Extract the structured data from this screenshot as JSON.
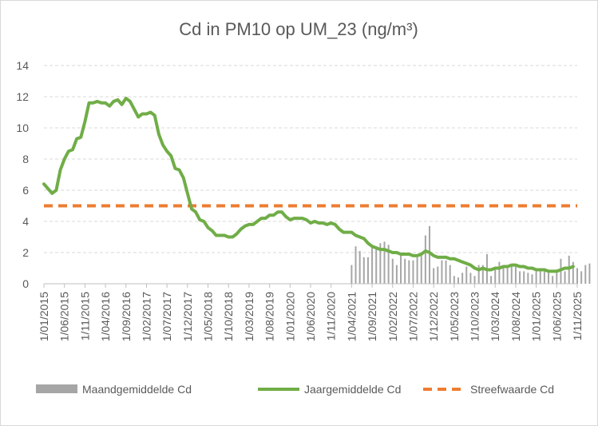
{
  "chart_data": {
    "type": "line",
    "title": "Cd in PM10 op UM_23 (ng/m³)",
    "xlabel": "",
    "ylabel": "",
    "ylim": [
      0,
      14
    ],
    "yticks": [
      "0",
      "2",
      "4",
      "6",
      "8",
      "10",
      "12",
      "14"
    ],
    "x_start": "2015-01",
    "x_end": "2025-11",
    "xticks": [
      "1/01/2015",
      "1/06/2015",
      "1/11/2015",
      "1/04/2016",
      "1/09/2016",
      "1/02/2017",
      "1/07/2017",
      "1/12/2017",
      "1/05/2018",
      "1/10/2018",
      "1/03/2019",
      "1/08/2019",
      "1/01/2020",
      "1/06/2020",
      "1/11/2020",
      "1/04/2021",
      "1/09/2021",
      "1/02/2022",
      "1/07/2022",
      "1/12/2022",
      "1/05/2023",
      "1/10/2023",
      "1/03/2024",
      "1/08/2024",
      "1/01/2025",
      "1/06/2025",
      "1/11/2025"
    ],
    "grid": true,
    "legend_position": "bottom",
    "series": [
      {
        "name": "Maandgemiddelde Cd",
        "kind": "bar",
        "color": "#a6a6a6",
        "start_index": 75,
        "values": [
          1.2,
          2.4,
          2.1,
          1.7,
          1.7,
          2.3,
          2.3,
          2.6,
          2.7,
          2.5,
          1.6,
          1.2,
          2.0,
          1.6,
          1.5,
          1.5,
          1.7,
          1.9,
          3.1,
          3.7,
          1.0,
          1.1,
          1.5,
          1.5,
          1.2,
          0.5,
          0.4,
          0.7,
          1.1,
          0.7,
          0.5,
          1.2,
          1.2,
          1.9,
          0.5,
          0.9,
          1.4,
          1.1,
          1.0,
          1.2,
          1.1,
          0.8,
          0.8,
          0.7,
          0.6,
          0.8,
          1.0,
          1.0,
          0.7,
          0.5,
          0.9,
          1.6,
          0.8,
          1.8,
          1.4,
          1.0,
          0.8,
          1.2,
          1.3
        ]
      },
      {
        "name": "Jaargemiddelde Cd",
        "kind": "line",
        "color": "#70ad47",
        "start_index": 0,
        "values": [
          6.4,
          6.1,
          5.8,
          6.0,
          7.3,
          8.0,
          8.5,
          8.6,
          9.3,
          9.4,
          10.4,
          11.6,
          11.6,
          11.7,
          11.6,
          11.6,
          11.4,
          11.7,
          11.8,
          11.5,
          11.9,
          11.7,
          11.2,
          10.7,
          10.9,
          10.9,
          11.0,
          10.8,
          9.6,
          8.9,
          8.5,
          8.2,
          7.4,
          7.3,
          6.8,
          5.8,
          4.8,
          4.6,
          4.1,
          4.0,
          3.6,
          3.4,
          3.1,
          3.1,
          3.1,
          3.0,
          3.0,
          3.2,
          3.5,
          3.7,
          3.8,
          3.8,
          4.0,
          4.2,
          4.2,
          4.4,
          4.4,
          4.6,
          4.6,
          4.3,
          4.1,
          4.2,
          4.2,
          4.2,
          4.1,
          3.9,
          4.0,
          3.9,
          3.9,
          3.8,
          3.9,
          3.8,
          3.5,
          3.3,
          3.3,
          3.3,
          3.1,
          3.0,
          2.9,
          2.6,
          2.4,
          2.3,
          2.2,
          2.2,
          2.1,
          2.0,
          2.0,
          1.9,
          1.9,
          1.9,
          1.8,
          1.8,
          1.9,
          2.1,
          2.0,
          1.8,
          1.7,
          1.7,
          1.7,
          1.6,
          1.6,
          1.5,
          1.4,
          1.3,
          1.2,
          1.0,
          0.9,
          1.0,
          0.9,
          0.9,
          1.0,
          1.0,
          1.1,
          1.1,
          1.2,
          1.2,
          1.1,
          1.1,
          1.0,
          1.0,
          0.9,
          0.9,
          0.9,
          0.8,
          0.8,
          0.8,
          0.9,
          1.0,
          1.0,
          1.1
        ]
      },
      {
        "name": "Streefwaarde Cd",
        "kind": "line-dashed",
        "color": "#ed7d31",
        "value": 5
      }
    ]
  }
}
